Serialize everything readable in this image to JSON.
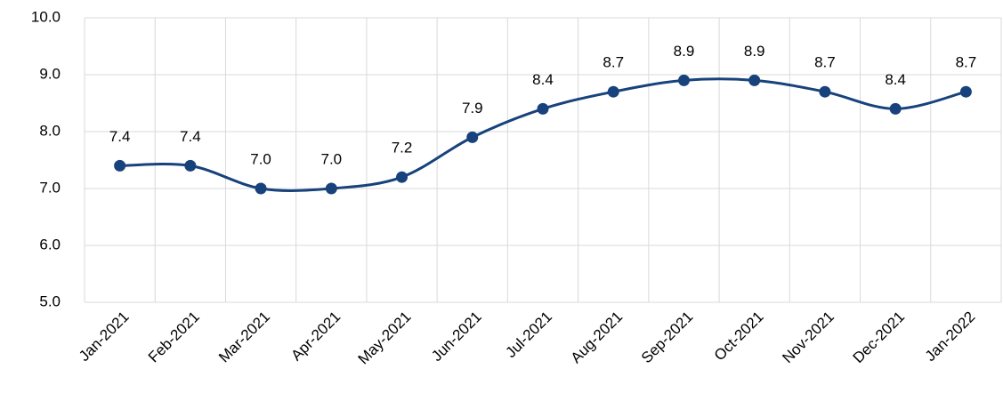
{
  "chart_data": {
    "type": "line",
    "categories": [
      "Jan-2021",
      "Feb-2021",
      "Mar-2021",
      "Apr-2021",
      "May-2021",
      "Jun-2021",
      "Jul-2021",
      "Aug-2021",
      "Sep-2021",
      "Oct-2021",
      "Nov-2021",
      "Dec-2021",
      "Jan-2022"
    ],
    "values": [
      7.4,
      7.4,
      7.0,
      7.0,
      7.2,
      7.9,
      8.4,
      8.7,
      8.9,
      8.9,
      8.7,
      8.4,
      8.7
    ],
    "value_labels": [
      "7.4",
      "7.4",
      "7.0",
      "7.0",
      "7.2",
      "7.9",
      "8.4",
      "8.7",
      "8.9",
      "8.9",
      "8.7",
      "8.4",
      "8.7"
    ],
    "color": "#17427c",
    "ylim": [
      5,
      10
    ],
    "yticks": [
      {
        "value": 5,
        "label": "5.0"
      },
      {
        "value": 6,
        "label": "6.0"
      },
      {
        "value": 7,
        "label": "7.0"
      },
      {
        "value": 8,
        "label": "8.0"
      },
      {
        "value": 9,
        "label": "9.0"
      },
      {
        "value": 10,
        "label": "10.0"
      }
    ],
    "grid": true,
    "smooth": true
  }
}
